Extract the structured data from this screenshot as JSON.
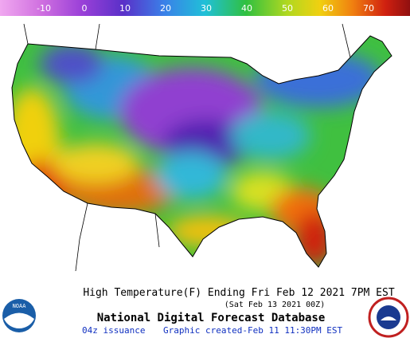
{
  "colorbar": {
    "ticks": [
      -10,
      0,
      10,
      20,
      30,
      40,
      50,
      60,
      70
    ]
  },
  "caption": {
    "line1": "High Temperature(F) Ending Fri Feb 12 2021  7PM EST",
    "line2": "(Sat Feb 13 2021 00Z)",
    "title": "National Digital Forecast Database",
    "issuance": "04z issuance",
    "created": "Graphic created-Feb 11 11:30PM EST"
  },
  "logos": {
    "noaa": "NOAA"
  }
}
